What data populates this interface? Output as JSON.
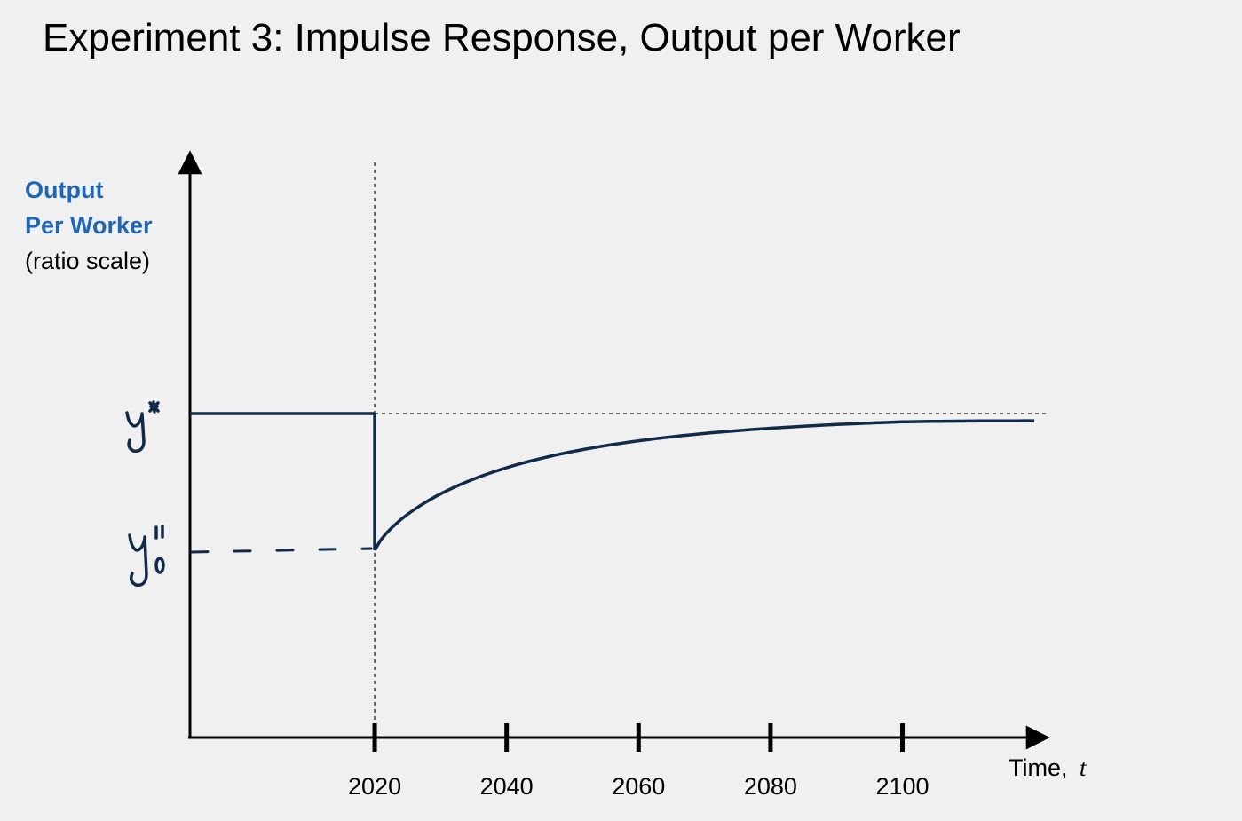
{
  "title": "Experiment 3: Impulse Response, Output per Worker",
  "chart_data": {
    "type": "line",
    "title": "Experiment 3: Impulse Response, Output per Worker",
    "ylabel_lines": [
      "Output",
      "Per Worker"
    ],
    "ylabel_note": "(ratio scale)",
    "xlabel": "Time,",
    "xlabel_var": "t",
    "xticks": [
      2020,
      2040,
      2060,
      2080,
      2100
    ],
    "xticks_labels": [
      "2020",
      "2040",
      "2060",
      "2080",
      "2100"
    ],
    "xlim": [
      1992,
      2122
    ],
    "shock_year": 2020,
    "levels": {
      "y_star": 1.0,
      "y0_star": 0.0
    },
    "level_marks": [
      "y*",
      "y0*"
    ],
    "series": [
      {
        "style": "solid",
        "segments": [
          {
            "kind": "flat",
            "x": [
              1992,
              2020
            ],
            "y": 1.0
          },
          {
            "kind": "drop",
            "x": 2020,
            "y": [
              1.0,
              0.0
            ]
          },
          {
            "kind": "recovery",
            "x": [
              2020,
              2120
            ],
            "y_start": 0.0,
            "y_end": 0.98
          }
        ]
      },
      {
        "style": "dashed",
        "segments": [
          {
            "kind": "flat",
            "x": [
              1992,
              2020
            ],
            "y": 0.0
          }
        ]
      }
    ],
    "reference_lines": [
      {
        "orientation": "vertical",
        "x": 2020,
        "style": "dotted"
      },
      {
        "orientation": "horizontal",
        "y": 1.0,
        "style": "dotted"
      }
    ],
    "grid": false,
    "legend": "none"
  }
}
